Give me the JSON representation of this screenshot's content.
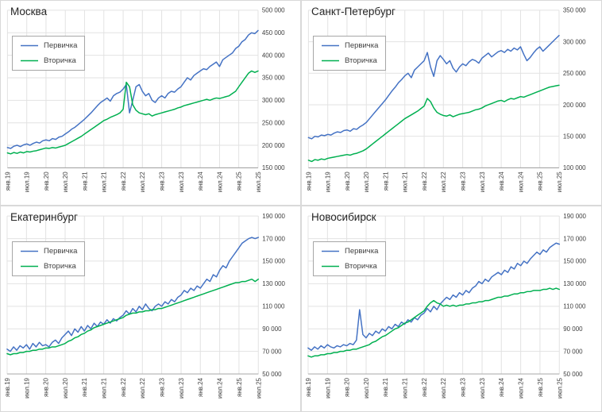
{
  "colors": {
    "primary_series": "#4472C4",
    "secondary_series": "#00B050",
    "grid": "#E2E2E2",
    "axis": "#9E9E9E",
    "tick_text": "#404040",
    "title_text": "#262626",
    "legend_border": "#A6A6A6",
    "panel_border": "#D9D9D9"
  },
  "x_axis": {
    "tick_labels": [
      "янв.19",
      "июл.19",
      "янв.20",
      "июл.20",
      "янв.21",
      "июл.21",
      "янв.22",
      "июл.22",
      "янв.23",
      "июл.23",
      "янв.24",
      "июл.24",
      "янв.25",
      "июл.25"
    ],
    "tick_every": 6,
    "points_per_series": 79,
    "x_range": "monthly, Jan 2019 – Jul 2025"
  },
  "chart_data": [
    {
      "type": "line",
      "title": "Москва",
      "ylim": [
        150000,
        500000
      ],
      "ytick_step": 50000,
      "grid": true,
      "legend_position": "top-left",
      "series": [
        {
          "name": "Первичка",
          "color": "#4472C4",
          "values": [
            195000,
            193000,
            198000,
            200000,
            197000,
            201000,
            203000,
            200000,
            204000,
            207000,
            205000,
            210000,
            212000,
            210000,
            215000,
            213000,
            218000,
            220000,
            225000,
            230000,
            236000,
            240000,
            246000,
            252000,
            258000,
            265000,
            272000,
            280000,
            288000,
            295000,
            300000,
            305000,
            298000,
            310000,
            315000,
            318000,
            325000,
            335000,
            272000,
            300000,
            330000,
            335000,
            320000,
            310000,
            315000,
            300000,
            295000,
            305000,
            310000,
            305000,
            315000,
            320000,
            318000,
            325000,
            330000,
            340000,
            350000,
            345000,
            355000,
            360000,
            365000,
            370000,
            368000,
            375000,
            380000,
            385000,
            375000,
            390000,
            395000,
            400000,
            405000,
            415000,
            420000,
            430000,
            435000,
            445000,
            450000,
            448000,
            455000
          ]
        },
        {
          "name": "Вторичка",
          "color": "#00B050",
          "values": [
            183000,
            181000,
            184000,
            182000,
            185000,
            183000,
            186000,
            185000,
            187000,
            188000,
            190000,
            192000,
            194000,
            193000,
            195000,
            194000,
            196000,
            198000,
            200000,
            204000,
            208000,
            212000,
            216000,
            220000,
            225000,
            230000,
            235000,
            240000,
            245000,
            250000,
            255000,
            258000,
            262000,
            265000,
            268000,
            272000,
            280000,
            340000,
            330000,
            290000,
            278000,
            272000,
            270000,
            268000,
            270000,
            265000,
            268000,
            270000,
            272000,
            274000,
            276000,
            278000,
            280000,
            283000,
            285000,
            288000,
            290000,
            292000,
            294000,
            296000,
            298000,
            300000,
            302000,
            300000,
            303000,
            305000,
            304000,
            306000,
            308000,
            310000,
            315000,
            320000,
            330000,
            340000,
            350000,
            360000,
            365000,
            362000,
            365000
          ]
        }
      ]
    },
    {
      "type": "line",
      "title": "Санкт-Петербург",
      "ylim": [
        100000,
        350000
      ],
      "ytick_step": 50000,
      "grid": true,
      "legend_position": "top-left",
      "series": [
        {
          "name": "Первичка",
          "color": "#4472C4",
          "values": [
            148000,
            146000,
            150000,
            149000,
            152000,
            151000,
            153000,
            152000,
            155000,
            157000,
            156000,
            159000,
            160000,
            158000,
            162000,
            161000,
            165000,
            168000,
            172000,
            178000,
            184000,
            190000,
            196000,
            202000,
            208000,
            215000,
            222000,
            228000,
            235000,
            240000,
            246000,
            250000,
            243000,
            255000,
            260000,
            265000,
            270000,
            283000,
            260000,
            245000,
            270000,
            278000,
            272000,
            265000,
            270000,
            258000,
            252000,
            260000,
            265000,
            262000,
            268000,
            272000,
            270000,
            266000,
            274000,
            278000,
            282000,
            276000,
            280000,
            284000,
            286000,
            283000,
            288000,
            285000,
            290000,
            287000,
            292000,
            280000,
            270000,
            275000,
            282000,
            288000,
            292000,
            285000,
            290000,
            295000,
            300000,
            305000,
            310000
          ]
        },
        {
          "name": "Вторичка",
          "color": "#00B050",
          "values": [
            112000,
            110000,
            113000,
            112000,
            114000,
            113000,
            115000,
            116000,
            117000,
            118000,
            119000,
            120000,
            121000,
            120000,
            122000,
            123000,
            125000,
            127000,
            130000,
            134000,
            138000,
            142000,
            146000,
            150000,
            154000,
            158000,
            162000,
            166000,
            170000,
            174000,
            178000,
            181000,
            184000,
            187000,
            190000,
            194000,
            198000,
            210000,
            205000,
            195000,
            188000,
            185000,
            183000,
            182000,
            184000,
            181000,
            183000,
            185000,
            186000,
            187000,
            188000,
            190000,
            192000,
            193000,
            195000,
            198000,
            200000,
            202000,
            204000,
            206000,
            207000,
            205000,
            208000,
            210000,
            209000,
            211000,
            213000,
            212000,
            214000,
            216000,
            218000,
            220000,
            222000,
            224000,
            226000,
            228000,
            229000,
            230000,
            231000
          ]
        }
      ]
    },
    {
      "type": "line",
      "title": "Екатеринбург",
      "ylim": [
        50000,
        190000
      ],
      "ytick_step": 20000,
      "grid": true,
      "legend_position": "top-left",
      "series": [
        {
          "name": "Первичка",
          "color": "#4472C4",
          "values": [
            72000,
            70000,
            74000,
            71000,
            75000,
            73000,
            76000,
            72000,
            77000,
            74000,
            78000,
            75000,
            76000,
            74000,
            78000,
            80000,
            77000,
            82000,
            85000,
            88000,
            84000,
            90000,
            87000,
            92000,
            88000,
            93000,
            90000,
            95000,
            92000,
            96000,
            94000,
            98000,
            95000,
            99000,
            97000,
            100000,
            102000,
            106000,
            103000,
            108000,
            105000,
            110000,
            107000,
            112000,
            108000,
            106000,
            110000,
            112000,
            110000,
            114000,
            112000,
            116000,
            114000,
            118000,
            120000,
            124000,
            122000,
            126000,
            124000,
            128000,
            126000,
            130000,
            134000,
            132000,
            138000,
            136000,
            142000,
            146000,
            144000,
            150000,
            154000,
            158000,
            162000,
            166000,
            168000,
            170000,
            171000,
            170000,
            171000
          ]
        },
        {
          "name": "Вторичка",
          "color": "#00B050",
          "values": [
            68000,
            67000,
            68000,
            68000,
            69000,
            69000,
            70000,
            70000,
            71000,
            71000,
            72000,
            72000,
            73000,
            73000,
            74000,
            74000,
            75000,
            76000,
            77000,
            79000,
            80000,
            82000,
            83000,
            85000,
            86000,
            88000,
            89000,
            91000,
            92000,
            93000,
            94000,
            95000,
            96000,
            97000,
            98000,
            99000,
            100000,
            102000,
            103000,
            104000,
            104000,
            105000,
            105000,
            106000,
            106000,
            107000,
            107000,
            108000,
            108000,
            109000,
            110000,
            111000,
            112000,
            113000,
            114000,
            115000,
            116000,
            117000,
            118000,
            119000,
            120000,
            121000,
            122000,
            123000,
            124000,
            125000,
            126000,
            127000,
            128000,
            129000,
            130000,
            131000,
            131000,
            132000,
            132000,
            133000,
            134000,
            132000,
            134000
          ]
        }
      ]
    },
    {
      "type": "line",
      "title": "Новосибирск",
      "ylim": [
        50000,
        190000
      ],
      "ytick_step": 20000,
      "grid": true,
      "legend_position": "top-left",
      "series": [
        {
          "name": "Первичка",
          "color": "#4472C4",
          "values": [
            73000,
            71000,
            74000,
            72000,
            75000,
            73000,
            76000,
            74000,
            73000,
            75000,
            74000,
            76000,
            75000,
            77000,
            76000,
            80000,
            107000,
            85000,
            82000,
            86000,
            84000,
            88000,
            86000,
            90000,
            88000,
            92000,
            90000,
            94000,
            92000,
            96000,
            94000,
            98000,
            96000,
            100000,
            98000,
            102000,
            104000,
            108000,
            105000,
            110000,
            107000,
            112000,
            115000,
            118000,
            116000,
            120000,
            118000,
            122000,
            120000,
            124000,
            122000,
            126000,
            128000,
            132000,
            130000,
            134000,
            132000,
            136000,
            138000,
            140000,
            138000,
            142000,
            140000,
            145000,
            143000,
            148000,
            146000,
            150000,
            148000,
            152000,
            155000,
            158000,
            156000,
            160000,
            158000,
            162000,
            164000,
            166000,
            165000
          ]
        },
        {
          "name": "Вторичка",
          "color": "#00B050",
          "values": [
            66000,
            65000,
            66000,
            66000,
            67000,
            67000,
            68000,
            68000,
            69000,
            69000,
            70000,
            70000,
            71000,
            71000,
            72000,
            72000,
            73000,
            74000,
            75000,
            76000,
            78000,
            79000,
            81000,
            83000,
            84000,
            86000,
            88000,
            90000,
            91000,
            93000,
            95000,
            96000,
            98000,
            100000,
            102000,
            104000,
            106000,
            110000,
            113000,
            115000,
            113000,
            112000,
            110000,
            111000,
            110000,
            111000,
            110000,
            111000,
            111000,
            112000,
            112000,
            113000,
            113000,
            114000,
            114000,
            115000,
            115000,
            116000,
            117000,
            118000,
            118000,
            119000,
            119000,
            120000,
            121000,
            121000,
            122000,
            122000,
            123000,
            123000,
            124000,
            124000,
            124000,
            125000,
            125000,
            126000,
            125000,
            126000,
            125000
          ]
        }
      ]
    }
  ]
}
